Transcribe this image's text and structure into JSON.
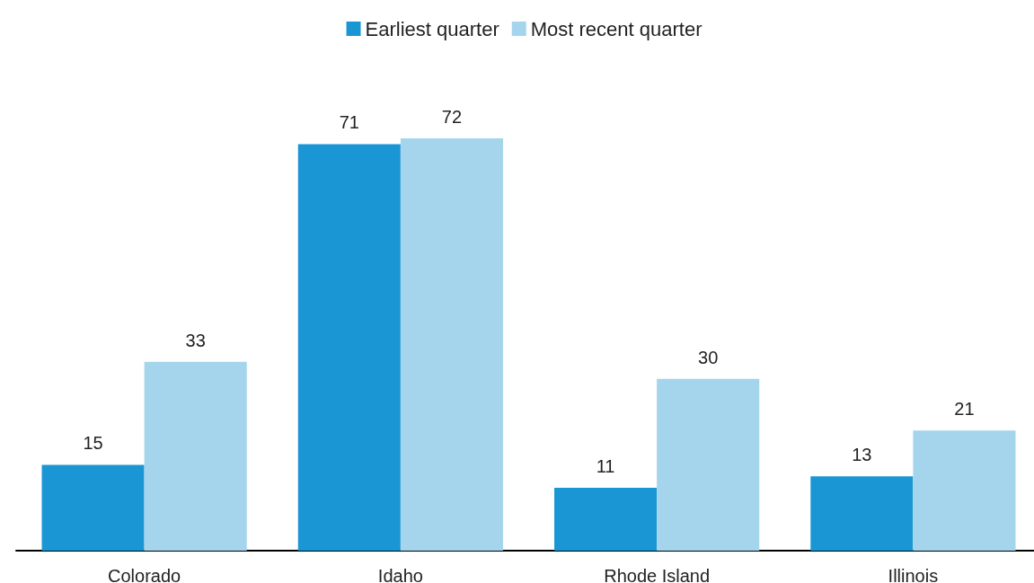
{
  "chart_data": {
    "type": "bar",
    "categories": [
      "Colorado",
      "Idaho",
      "Rhode Island",
      "Illinois"
    ],
    "series": [
      {
        "name": "Earliest quarter",
        "color": "#1a96d4",
        "values": [
          15,
          71,
          11,
          13
        ]
      },
      {
        "name": "Most recent quarter",
        "color": "#a5d5ec",
        "values": [
          33,
          72,
          30,
          21
        ]
      }
    ],
    "data_labels": true,
    "legend": "top",
    "grid": false
  }
}
